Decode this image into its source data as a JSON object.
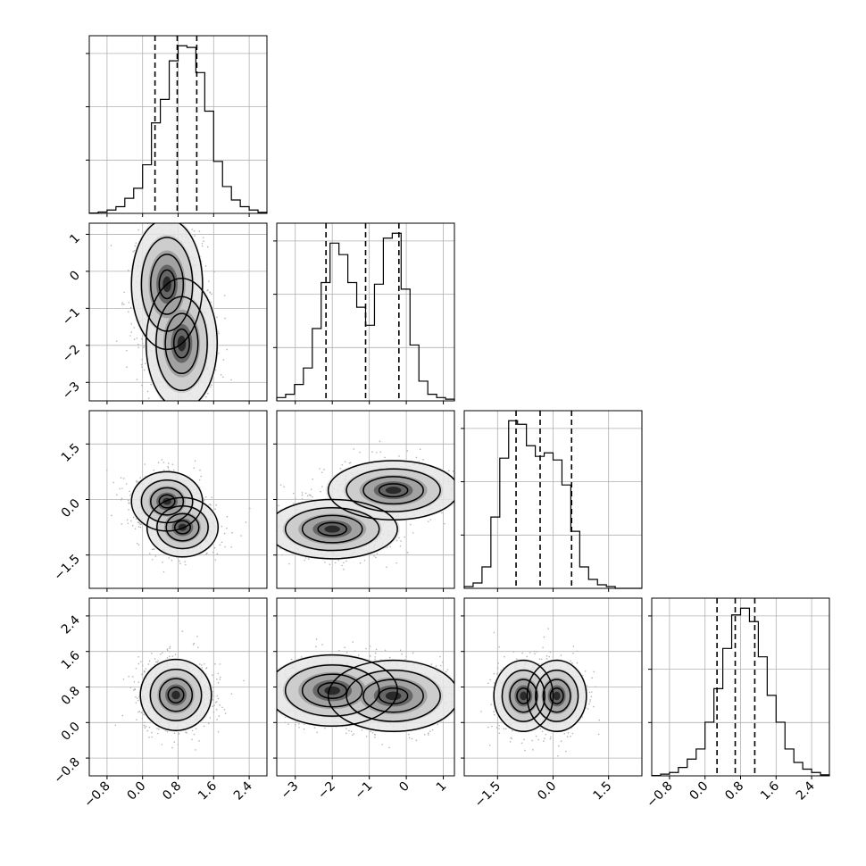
{
  "chart_data": {
    "type": "corner",
    "parameters": [
      {
        "mean": 0.75,
        "sd": 0.4,
        "range": [
          -1.2,
          2.8
        ],
        "ticks": [
          -0.8,
          0.0,
          0.8,
          1.6,
          2.4
        ],
        "tick_labels": [
          "−0.8",
          "0.0",
          "0.8",
          "1.6",
          "2.4"
        ],
        "quantiles": [
          0.28,
          0.78,
          1.22
        ],
        "hist_bins": [
          0.002,
          0.008,
          0.02,
          0.04,
          0.09,
          0.15,
          0.29,
          0.54,
          0.68,
          0.91,
          1.0,
          0.99,
          0.84,
          0.61,
          0.31,
          0.16,
          0.08,
          0.04,
          0.02,
          0.006
        ]
      },
      {
        "mean": -1.1,
        "sd": 1.0,
        "range": [
          -3.5,
          1.3
        ],
        "ticks": [
          -3,
          -2,
          -1,
          0,
          1
        ],
        "tick_labels": [
          "−3",
          "−2",
          "−1",
          "0",
          "1"
        ],
        "quantiles": [
          -2.17,
          -1.1,
          -0.2
        ],
        "hist_bins": [
          0.02,
          0.04,
          0.1,
          0.2,
          0.44,
          0.72,
          0.96,
          0.89,
          0.72,
          0.57,
          0.46,
          0.71,
          0.99,
          1.02,
          0.68,
          0.34,
          0.12,
          0.04,
          0.02,
          0.01
        ]
      },
      {
        "mean": -0.4,
        "sd": 0.75,
        "range": [
          -2.4,
          2.4
        ],
        "ticks": [
          -1.5,
          0.0,
          1.5
        ],
        "tick_labels": [
          "−1.5",
          "0.0",
          "1.5"
        ],
        "quantiles": [
          -1.0,
          -0.35,
          0.5
        ],
        "hist_bins": [
          0.01,
          0.03,
          0.12,
          0.4,
          0.73,
          0.94,
          0.92,
          0.8,
          0.74,
          0.76,
          0.72,
          0.58,
          0.32,
          0.12,
          0.05,
          0.02,
          0.01,
          0.0,
          0.0,
          0.0
        ]
      },
      {
        "mean": 0.65,
        "sd": 0.4,
        "range": [
          -1.2,
          2.8
        ],
        "ticks": [
          -0.8,
          0.0,
          0.8,
          1.6,
          2.4
        ],
        "tick_labels": [
          "−0.8",
          "0.0",
          "0.8",
          "1.6",
          "2.4"
        ],
        "quantiles": [
          0.27,
          0.68,
          1.12
        ],
        "hist_bins": [
          0.002,
          0.01,
          0.02,
          0.05,
          0.1,
          0.16,
          0.32,
          0.52,
          0.76,
          0.96,
          1.0,
          0.92,
          0.71,
          0.48,
          0.32,
          0.16,
          0.08,
          0.04,
          0.02,
          0.006
        ]
      }
    ],
    "pair_panels": [
      {
        "row": 1,
        "col": 0,
        "modes": [
          {
            "x": 0.55,
            "y": -0.35
          },
          {
            "x": 0.88,
            "y": -1.95
          }
        ]
      },
      {
        "row": 2,
        "col": 0,
        "modes": [
          {
            "x": 0.55,
            "y": -0.05
          },
          {
            "x": 0.9,
            "y": -0.75
          }
        ]
      },
      {
        "row": 2,
        "col": 1,
        "modes": [
          {
            "x": -2.0,
            "y": -0.8
          },
          {
            "x": -0.35,
            "y": 0.25
          }
        ]
      },
      {
        "row": 3,
        "col": 0,
        "modes": [
          {
            "x": 0.75,
            "y": 0.62
          }
        ]
      },
      {
        "row": 3,
        "col": 1,
        "modes": [
          {
            "x": -2.0,
            "y": 0.72
          },
          {
            "x": -0.35,
            "y": 0.6
          }
        ]
      },
      {
        "row": 3,
        "col": 2,
        "modes": [
          {
            "x": -0.8,
            "y": 0.6
          },
          {
            "x": 0.1,
            "y": 0.6
          }
        ]
      }
    ],
    "grid": true
  }
}
